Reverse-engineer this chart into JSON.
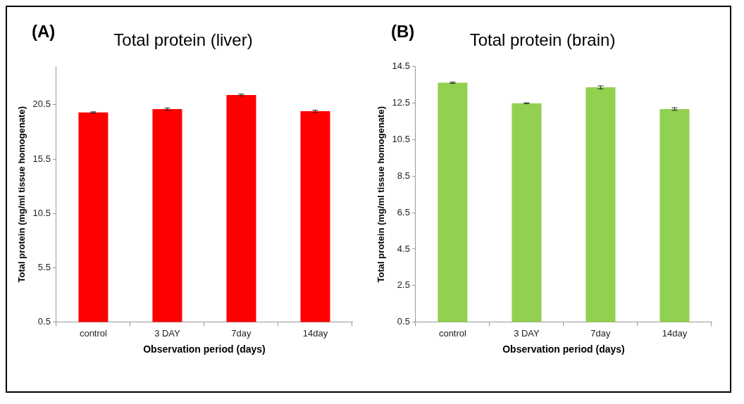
{
  "chart_data": [
    {
      "type": "bar",
      "title": "Total protein (liver)",
      "annotations": [
        "(A)"
      ],
      "xlabel": "Observation period (days)",
      "ylabel": "Total protein (mg/ml tissue homogenate)",
      "categories": [
        "control",
        "3 DAY",
        "7day",
        "14day"
      ],
      "series": [
        {
          "color": "#ff0000",
          "values": [
            19.8,
            20.1,
            21.4,
            19.9
          ],
          "errors": [
            0.05,
            0.1,
            0.08,
            0.1
          ]
        }
      ],
      "ylim": [
        0.5,
        24
      ],
      "yticks": [
        0.5,
        5.5,
        10.5,
        15.5,
        20.5
      ],
      "grid": false,
      "legend": false
    },
    {
      "type": "bar",
      "title": "Total protein (brain)",
      "annotations": [
        "(B)"
      ],
      "xlabel": "Observation period (days)",
      "ylabel": "Total protein (mg/ml tissue homogenate)",
      "categories": [
        "control",
        "3 DAY",
        "7day",
        "14day"
      ],
      "series": [
        {
          "color": "#92d050",
          "values": [
            13.62,
            12.5,
            13.37,
            12.18
          ],
          "errors": [
            0.03,
            0.02,
            0.08,
            0.07
          ]
        }
      ],
      "ylim": [
        0.5,
        14.5
      ],
      "yticks": [
        0.5,
        2.5,
        4.5,
        6.5,
        8.5,
        10.5,
        12.5,
        14.5
      ],
      "grid": false,
      "legend": false
    }
  ]
}
